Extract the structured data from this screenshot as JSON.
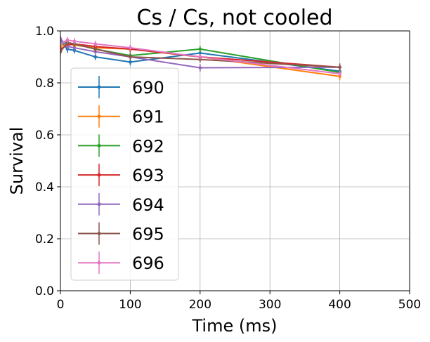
{
  "chart_data": {
    "type": "line",
    "title": "Cs / Cs, not cooled",
    "xlabel": "Time (ms)",
    "ylabel": "Survival",
    "xlim": [
      0,
      500
    ],
    "ylim": [
      0.0,
      1.0
    ],
    "xticks": [
      "0",
      "100",
      "200",
      "300",
      "400",
      "500"
    ],
    "yticks": [
      "0.0",
      "0.2",
      "0.4",
      "0.6",
      "0.8",
      "1.0"
    ],
    "grid": true,
    "legend_position": "center-left",
    "series": [
      {
        "name": "690",
        "color": "#1f77b4",
        "x": [
          0,
          10,
          20,
          50,
          100,
          200,
          400
        ],
        "y": [
          0.96,
          0.93,
          0.925,
          0.9,
          0.88,
          0.915,
          0.845
        ],
        "err": [
          0.015,
          0.015,
          0.012,
          0.012,
          0.012,
          0.012,
          0.012
        ]
      },
      {
        "name": "691",
        "color": "#ff7f0e",
        "x": [
          0,
          10,
          20,
          50,
          100,
          200,
          400
        ],
        "y": [
          0.94,
          0.95,
          0.945,
          0.935,
          0.93,
          0.9,
          0.825
        ],
        "err": [
          0.012,
          0.012,
          0.012,
          0.012,
          0.012,
          0.012,
          0.015
        ]
      },
      {
        "name": "692",
        "color": "#2ca02c",
        "x": [
          0,
          10,
          20,
          50,
          100,
          200,
          400
        ],
        "y": [
          0.95,
          0.955,
          0.95,
          0.93,
          0.905,
          0.93,
          0.84
        ],
        "err": [
          0.012,
          0.012,
          0.012,
          0.012,
          0.012,
          0.012,
          0.012
        ]
      },
      {
        "name": "693",
        "color": "#d62728",
        "x": [
          0,
          10,
          20,
          50,
          100,
          200,
          400
        ],
        "y": [
          0.93,
          0.945,
          0.95,
          0.94,
          0.93,
          0.9,
          0.86
        ],
        "err": [
          0.015,
          0.012,
          0.012,
          0.012,
          0.012,
          0.012,
          0.012
        ]
      },
      {
        "name": "694",
        "color": "#9467bd",
        "x": [
          0,
          10,
          20,
          50,
          100,
          200,
          400
        ],
        "y": [
          0.97,
          0.94,
          0.935,
          0.92,
          0.9,
          0.858,
          0.86
        ],
        "err": [
          0.012,
          0.012,
          0.012,
          0.012,
          0.012,
          0.015,
          0.012
        ]
      },
      {
        "name": "695",
        "color": "#8c564b",
        "x": [
          0,
          10,
          20,
          50,
          100,
          200,
          400
        ],
        "y": [
          0.92,
          0.955,
          0.95,
          0.93,
          0.9,
          0.89,
          0.86
        ],
        "err": [
          0.015,
          0.012,
          0.012,
          0.012,
          0.012,
          0.012,
          0.015
        ]
      },
      {
        "name": "696",
        "color": "#e377c2",
        "x": [
          0,
          10,
          20,
          50,
          100,
          200,
          400
        ],
        "y": [
          0.95,
          0.965,
          0.96,
          0.95,
          0.935,
          0.9,
          0.835
        ],
        "err": [
          0.012,
          0.012,
          0.012,
          0.012,
          0.012,
          0.012,
          0.012
        ]
      }
    ]
  }
}
